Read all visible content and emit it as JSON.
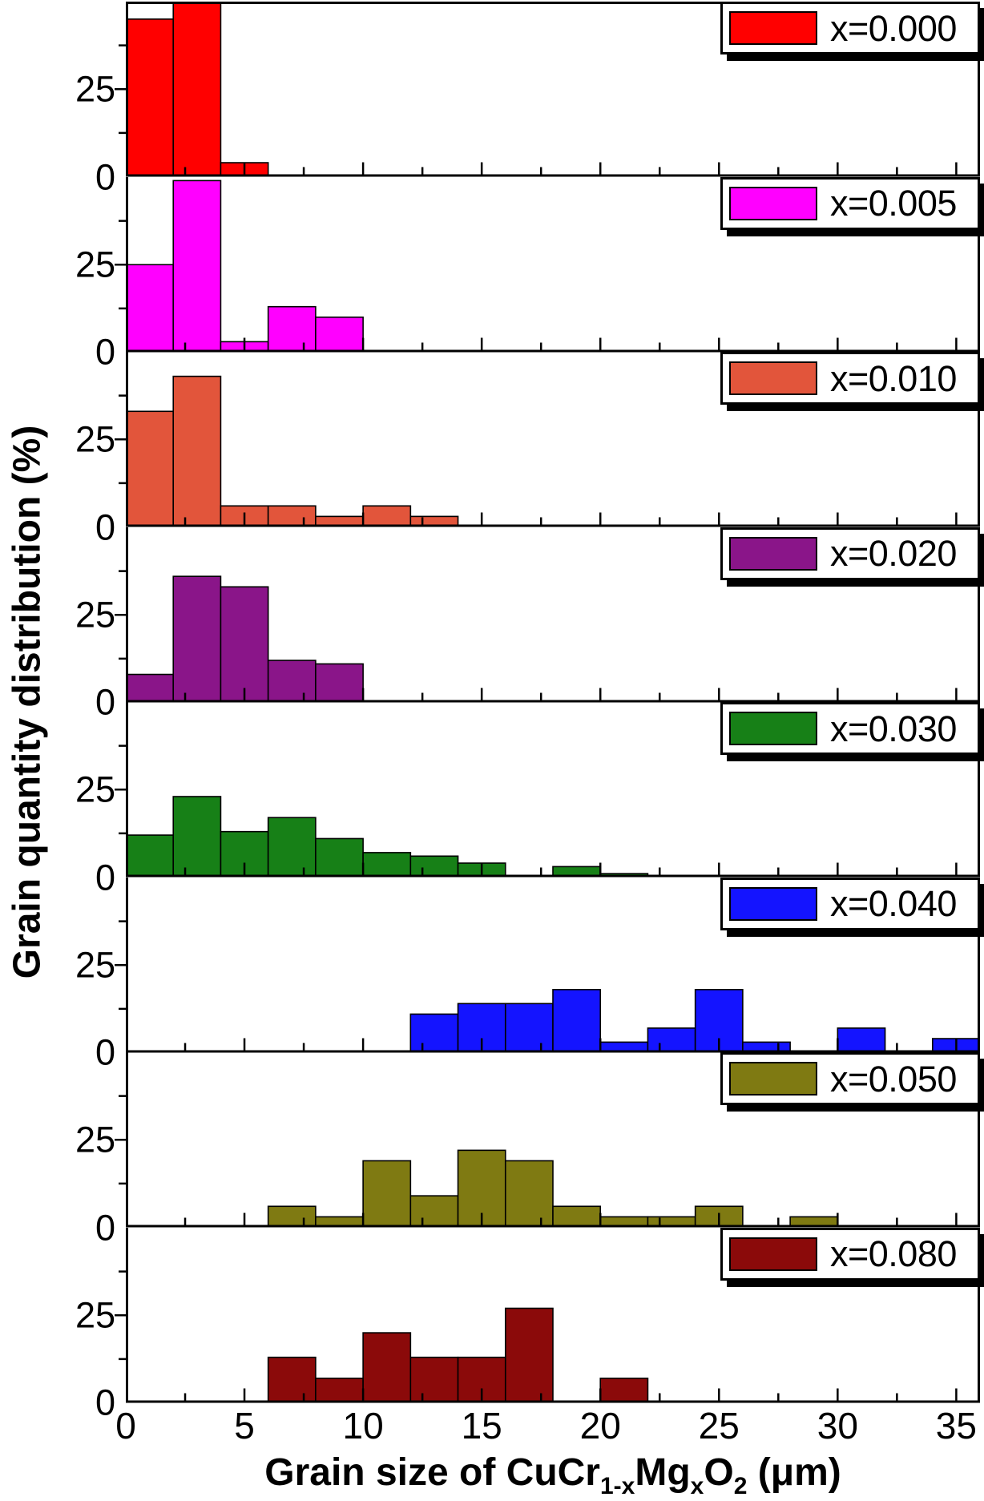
{
  "chart_data": {
    "type": "bar",
    "title": "",
    "ylabel": "Grain quantity distribution (%)",
    "xlabel": "Grain size of CuCr1-xMgxO2 (μm)",
    "xlabel_parts": [
      {
        "t": "Grain size of CuCr",
        "sub": false
      },
      {
        "t": "1-x",
        "sub": true
      },
      {
        "t": "Mg",
        "sub": false
      },
      {
        "t": "x",
        "sub": true
      },
      {
        "t": "O",
        "sub": false
      },
      {
        "t": "2",
        "sub": true
      },
      {
        "t": " (μm)",
        "sub": false
      }
    ],
    "xlim": [
      0,
      36
    ],
    "x_ticks": [
      0,
      5,
      10,
      15,
      20,
      25,
      30,
      35
    ],
    "x_minor_step": 2.5,
    "panel_ylim": [
      0,
      50
    ],
    "panel_ytick_labels": [
      "0",
      "25"
    ],
    "panel_yticks_minor": [
      12.5,
      37.5
    ],
    "panel_ytick_major": 25,
    "bin_width": 2,
    "legend_position": "top-right",
    "grid": false,
    "panels": [
      {
        "label": "x=0.000",
        "color": "#ff0000",
        "bars": [
          [
            0,
            45
          ],
          [
            2,
            51
          ],
          [
            4,
            4
          ]
        ]
      },
      {
        "label": "x=0.005",
        "color": "#ff00ff",
        "bars": [
          [
            0,
            25
          ],
          [
            2,
            49
          ],
          [
            4,
            3
          ],
          [
            6,
            13
          ],
          [
            8,
            10
          ]
        ]
      },
      {
        "label": "x=0.010",
        "color": "#e2553b",
        "bars": [
          [
            0,
            33
          ],
          [
            2,
            43
          ],
          [
            4,
            6
          ],
          [
            6,
            6
          ],
          [
            8,
            3
          ],
          [
            10,
            6
          ],
          [
            12,
            3
          ]
        ]
      },
      {
        "label": "x=0.020",
        "color": "#8a1589",
        "bars": [
          [
            0,
            8
          ],
          [
            2,
            36
          ],
          [
            4,
            33
          ],
          [
            6,
            12
          ],
          [
            8,
            11
          ]
        ]
      },
      {
        "label": "x=0.030",
        "color": "#178017",
        "bars": [
          [
            0,
            12
          ],
          [
            2,
            23
          ],
          [
            4,
            13
          ],
          [
            6,
            17
          ],
          [
            8,
            11
          ],
          [
            10,
            7
          ],
          [
            12,
            6
          ],
          [
            14,
            4
          ],
          [
            18,
            3
          ],
          [
            20,
            1
          ]
        ]
      },
      {
        "label": "x=0.040",
        "color": "#1414ff",
        "bars": [
          [
            12,
            11
          ],
          [
            14,
            14
          ],
          [
            16,
            14
          ],
          [
            18,
            18
          ],
          [
            20,
            3
          ],
          [
            22,
            7
          ],
          [
            24,
            18
          ],
          [
            26,
            3
          ],
          [
            30,
            7
          ],
          [
            34,
            4
          ]
        ]
      },
      {
        "label": "x=0.050",
        "color": "#7f7a12",
        "bars": [
          [
            6,
            6
          ],
          [
            8,
            3
          ],
          [
            10,
            19
          ],
          [
            12,
            9
          ],
          [
            14,
            22
          ],
          [
            16,
            19
          ],
          [
            18,
            6
          ],
          [
            20,
            3
          ],
          [
            22,
            3
          ],
          [
            24,
            6
          ],
          [
            28,
            3
          ]
        ]
      },
      {
        "label": "x=0.080",
        "color": "#8b0a0a",
        "bars": [
          [
            6,
            13
          ],
          [
            8,
            7
          ],
          [
            10,
            20
          ],
          [
            12,
            13
          ],
          [
            14,
            13
          ],
          [
            16,
            27
          ],
          [
            20,
            7
          ]
        ]
      }
    ]
  }
}
